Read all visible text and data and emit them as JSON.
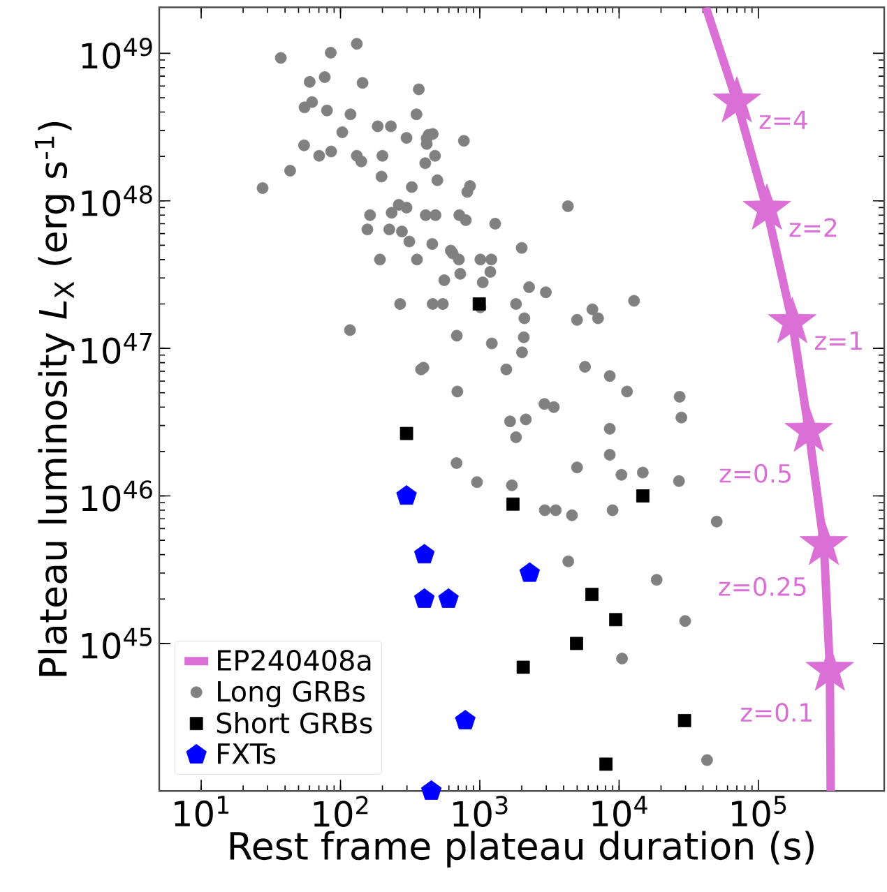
{
  "chart_data": {
    "type": "scatter",
    "xlabel": "Rest frame plateau duration (s)",
    "ylabel": "Plateau luminosity *L*$_{X}$ (erg s$^{-1}$)",
    "log": "xy",
    "legend": "bottom left",
    "xlim": [
      5,
      800000
    ],
    "ylim": [
      1e+44,
      2.05e+49
    ],
    "xticks": [
      {
        "value": 10,
        "label": "10$^{1}$"
      },
      {
        "value": 100,
        "label": "10$^{2}$"
      },
      {
        "value": 1000,
        "label": "10$^{3}$"
      },
      {
        "value": 10000,
        "label": "10$^{4}$"
      },
      {
        "value": 100000,
        "label": "10$^{5}$"
      }
    ],
    "yticks": [
      {
        "value": 1e+45,
        "label": "10$^{45}$"
      },
      {
        "value": 1e+46,
        "label": "10$^{46}$"
      },
      {
        "value": 1e+47,
        "label": "10$^{47}$"
      },
      {
        "value": 1e+48,
        "label": "10$^{48}$"
      },
      {
        "value": 1e+49,
        "label": "10$^{49}$"
      }
    ],
    "series": [
      {
        "name": "EP240408a",
        "type": "line",
        "marker": "none",
        "color": "#da70d6",
        "x": [
          42000,
          70000,
          115000,
          175000,
          230000,
          295000,
          326000,
          330000
        ],
        "values": [
          2.05e+49,
          4.7e+48,
          8.8e+47,
          1.5e+47,
          2.75e+46,
          4.7e+45,
          6.6e+44,
          1e+44
        ]
      },
      {
        "type": "scatter",
        "marker": "star",
        "color": "#da70d6",
        "x": [
          70000,
          115000,
          175000,
          230000,
          295000,
          326000
        ],
        "values": [
          4.7e+48,
          8.8e+47,
          1.5e+47,
          2.75e+46,
          4.7e+45,
          6.6e+44
        ]
      },
      {
        "name": "Long GRBs",
        "marker": "circle",
        "color": "#808080",
        "x": [
          27.6,
          37.3,
          43.5,
          54.8,
          55.2,
          60.1,
          62.5,
          70.3,
          77.1,
          80,
          85.1,
          85.7,
          103,
          118,
          131,
          131,
          144,
          141,
          117,
          156,
          163,
          185,
          192,
          197,
          200,
          230,
          224,
          233,
          262,
          268,
          276,
          298,
          298,
          312,
          325,
          351,
          354,
          365,
          379,
          394,
          406,
          409,
          416,
          429,
          416,
          459,
          459,
          456,
          481,
          477,
          496,
          543,
          556,
          769,
          851,
          813,
          4290,
          713,
          794,
          1290,
          2000,
          619,
          639,
          708,
          1010,
          1210,
          1190,
          724,
          1050,
          2260,
          2980,
          1010,
          1820,
          12800,
          2090,
          6430,
          7060,
          4990,
          684,
          2070,
          1220,
          2010,
          1550,
          5690,
          8570,
          690,
          11400,
          27200,
          28000,
          2910,
          3400,
          1650,
          2140,
          1820,
          8570,
          8570,
          681,
          4990,
          955,
          1700,
          10400,
          14800,
          26900,
          2930,
          3510,
          4590,
          8980,
          50200,
          4320,
          18600,
          29800,
          10500,
          42800
        ],
        "values": [
          1.22e+48,
          9.3e+48,
          1.6e+48,
          2.38e+48,
          4.3e+48,
          6.4e+48,
          4.67e+48,
          2.02e+48,
          6.9e+48,
          4.1e+48,
          1.01e+49,
          2.16e+48,
          2.92e+48,
          3.86e+48,
          1.16e+49,
          2.02e+48,
          6.3e+48,
          1.85e+48,
          1.33e+47,
          6.4e+47,
          8e+47,
          3.2e+48,
          4e+47,
          1.46e+48,
          2.02e+48,
          3.2e+48,
          6.4e+47,
          8.3e+47,
          9.4e+47,
          2e+47,
          6.2e+47,
          9e+47,
          2.67e+48,
          5.3e+47,
          1.24e+48,
          3.86e+48,
          4e+47,
          5.7e+48,
          7.2e+46,
          7.4e+46,
          1.8e+48,
          8e+47,
          2.65e+48,
          2.8e+48,
          2.43e+48,
          2.84e+48,
          2e+47,
          5.1e+47,
          8e+47,
          2.02e+48,
          1.38e+48,
          2e+47,
          2.9e+47,
          2.55e+48,
          1.26e+48,
          1.15e+48,
          9.2e+47,
          8e+47,
          7.4e+47,
          7e+47,
          4.8e+47,
          4.6e+47,
          4.4e+47,
          4e+47,
          4e+47,
          4e+47,
          3.3e+47,
          3.2e+47,
          2.8e+47,
          2.6e+47,
          2.4e+47,
          1.9e+47,
          2e+47,
          2.1e+47,
          1.6e+47,
          1.84e+47,
          1.6e+47,
          1.56e+47,
          1.22e+47,
          1.19e+47,
          1.08e+47,
          9.4e+46,
          7.2e+46,
          7.5e+46,
          6.5e+46,
          5.1e+46,
          5.1e+46,
          4.7e+46,
          3.4e+46,
          4.2e+46,
          4e+46,
          3.2e+46,
          3.3e+46,
          2.5e+46,
          2.85e+46,
          1.9e+46,
          1.67e+46,
          1.56e+46,
          1.24e+46,
          1.18e+46,
          1.39e+46,
          1.44e+46,
          1.26e+46,
          8e+45,
          8e+45,
          7.4e+45,
          8e+45,
          6.7e+45,
          3.6e+45,
          2.7e+45,
          1.42e+45,
          7.9e+44,
          1.62e+44
        ]
      },
      {
        "name": "Short GRBs",
        "marker": "square",
        "color": "#000000",
        "x": [
          991,
          298,
          1730,
          14800,
          6380,
          9460,
          4950,
          2050,
          29500,
          8050
        ],
        "values": [
          2e+47,
          2.65e+46,
          8.8e+45,
          1e+46,
          2.15e+45,
          1.45e+45,
          1e+45,
          6.9e+44,
          3e+44,
          1.52e+44
        ]
      },
      {
        "name": "FXTs",
        "color": "#0000ff",
        "x": [
          298,
          400,
          2280,
          400,
          596,
          787,
          449
        ],
        "values": [
          1e+46,
          4e+45,
          3e+45,
          2e+45,
          2e+45,
          3e+44,
          1e+44
        ]
      }
    ],
    "annotations": [
      {
        "text": "z=4",
        "x": 70000,
        "y": 4.7e+48
      },
      {
        "text": "z=2",
        "x": 115000,
        "y": 8.8e+47
      },
      {
        "text": "z=1",
        "x": 175000,
        "y": 1.5e+47
      },
      {
        "text": "z=0.5",
        "x": 230000,
        "y": 2.75e+46
      },
      {
        "text": "z=0.25",
        "x": 295000,
        "y": 4.7e+45
      },
      {
        "text": "z=0.1",
        "x": 326000,
        "y": 6.6e+44
      }
    ]
  }
}
